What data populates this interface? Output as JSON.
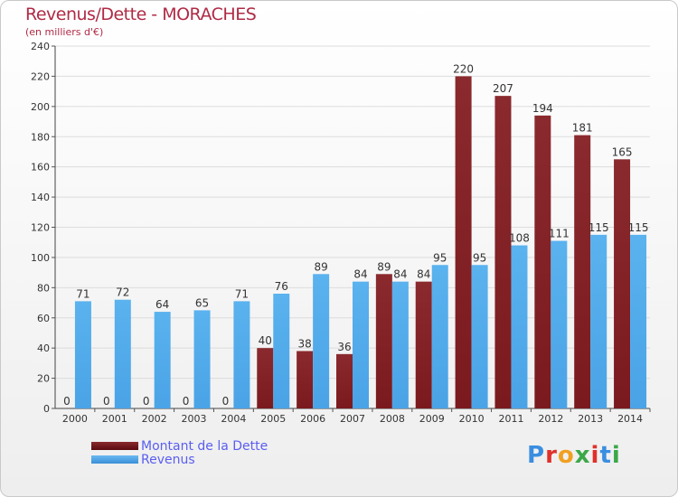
{
  "header": {
    "title": "Revenus/Dette - MORACHES",
    "subtitle": "(en milliers d'€)"
  },
  "legend": {
    "debt_label": "Montant de la Dette",
    "revenue_label": "Revenus"
  },
  "logo": {
    "text": "Proxiti",
    "letter_colors": [
      "#3a8ee0",
      "#e0302a",
      "#f0a020",
      "#3aa848",
      "#e0302a",
      "#3a8ee0",
      "#3aa848"
    ]
  },
  "colors": {
    "debt": "#7a1a1e",
    "revenue": "#4aa3e6",
    "title": "#b02a45",
    "legend_text": "#5a5ef0"
  },
  "chart_data": {
    "type": "bar",
    "categories": [
      "2000",
      "2001",
      "2002",
      "2003",
      "2004",
      "2005",
      "2006",
      "2007",
      "2008",
      "2009",
      "2010",
      "2011",
      "2012",
      "2013",
      "2014"
    ],
    "series": [
      {
        "name": "Montant de la Dette",
        "values": [
          0,
          0,
          0,
          0,
          0,
          40,
          38,
          36,
          89,
          84,
          220,
          207,
          194,
          181,
          165
        ]
      },
      {
        "name": "Revenus",
        "values": [
          71,
          72,
          64,
          65,
          71,
          76,
          89,
          84,
          84,
          95,
          95,
          108,
          111,
          115,
          115
        ]
      }
    ],
    "title": "Revenus/Dette - MORACHES",
    "ylabel": "(en milliers d'€)",
    "ylim": [
      0,
      240
    ],
    "yticks": [
      0,
      20,
      40,
      60,
      80,
      100,
      120,
      140,
      160,
      180,
      200,
      220,
      240
    ],
    "grid": true,
    "legend_position": "bottom-left"
  }
}
